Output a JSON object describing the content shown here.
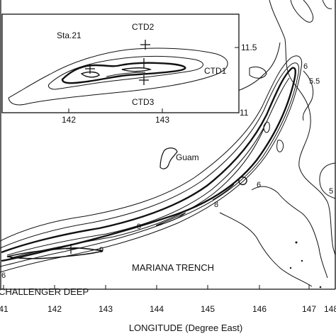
{
  "inset": {
    "station_label": "Sta.21",
    "ctd_labels": [
      "CTD2",
      "CTD1",
      "CTD3"
    ],
    "x_ticks": [
      "142",
      "143"
    ],
    "y_ticks": [
      "11.5",
      "11"
    ]
  },
  "main": {
    "x_ticks": [
      "41",
      "142",
      "143",
      "144",
      "145",
      "146",
      "147",
      "148"
    ],
    "x_axis_label": "LONGITUDE (Degree East)",
    "place_labels": {
      "guam": "Guam",
      "trench": "MARIANA TRENCH",
      "deep": "CHALLENGER DEEP"
    },
    "contour_labels": [
      "6",
      "5.5",
      "6",
      "8",
      "9",
      "9",
      "6",
      "5"
    ]
  },
  "colors": {
    "ink": "#111111",
    "background": "#ffffff"
  }
}
